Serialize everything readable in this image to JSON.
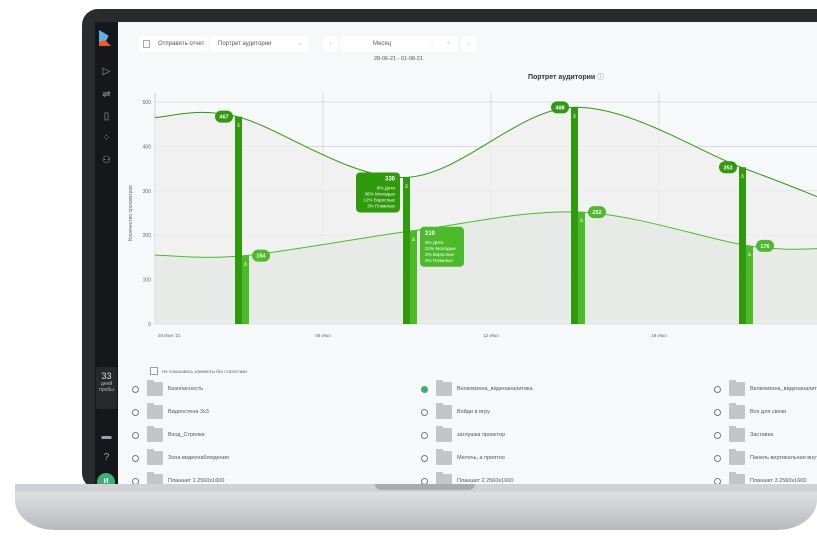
{
  "toolbar": {
    "send_report": "Отправить отчет",
    "report_select": "Портрет аудитории",
    "period": "Месяц",
    "date_range": "28-06-21 - 01-08-21"
  },
  "sidebar": {
    "icons": [
      "play-icon",
      "filter-icon",
      "document-icon",
      "loading-icon",
      "user-icon"
    ],
    "trial_days": "33",
    "trial_label": "дней пробы",
    "avatar_initials": "И"
  },
  "chart_title": "Портрет аудитории",
  "chart_data": {
    "type": "bar+line",
    "ylabel": "Количество просмотров",
    "ylim": [
      0,
      500
    ],
    "yticks": [
      0,
      100,
      200,
      300,
      400,
      500
    ],
    "xticks": [
      "28 Июн '21",
      "05 Июл",
      "12 Июл",
      "19 Июл"
    ],
    "grid": true,
    "colors": {
      "upper": "#2e9a0c",
      "lower": "#4cbb2a"
    },
    "series": [
      {
        "values": [
          467,
          330,
          488,
          353
        ]
      },
      {
        "values": [
          154,
          210,
          252,
          176
        ]
      }
    ],
    "tooltips": [
      {
        "value": "330",
        "lines": [
          "8% Дети",
          "36% Молодые",
          "12% Взрослые",
          "3% Пожилые"
        ],
        "color": "#2e9a0c"
      },
      {
        "value": "210",
        "lines": [
          "9% Дети",
          "22% Молодые",
          "2% Взрослые",
          "2% Пожилые"
        ],
        "color": "#4cbb2a"
      }
    ]
  },
  "filter": {
    "hide_empty": "Не показывать элементы без статистики"
  },
  "items": [
    {
      "label": "Безопасность",
      "checked": false
    },
    {
      "label": "Велкомзона_видеоаналитика",
      "checked": true
    },
    {
      "label": "Велкомзона_видеоаналитика",
      "checked": false
    },
    {
      "label": "Видеостена 3х3",
      "checked": false
    },
    {
      "label": "Войди в игру",
      "checked": false
    },
    {
      "label": "Все для связи",
      "checked": false
    },
    {
      "label": "Вход_Стрелки",
      "checked": false
    },
    {
      "label": "заглушка проектор",
      "checked": false
    },
    {
      "label": "Заставка",
      "checked": false
    },
    {
      "label": "Зона видеонаблюдения",
      "checked": false
    },
    {
      "label": "Мелочь, а приятно",
      "checked": false
    },
    {
      "label": "Панель вертикальная внутр",
      "checked": false
    },
    {
      "label": "Планшет 1 2560х1600",
      "checked": false
    },
    {
      "label": "Планшет 2 2560х1600",
      "checked": false
    },
    {
      "label": "Планшет 3 2560х1600",
      "checked": false
    }
  ]
}
